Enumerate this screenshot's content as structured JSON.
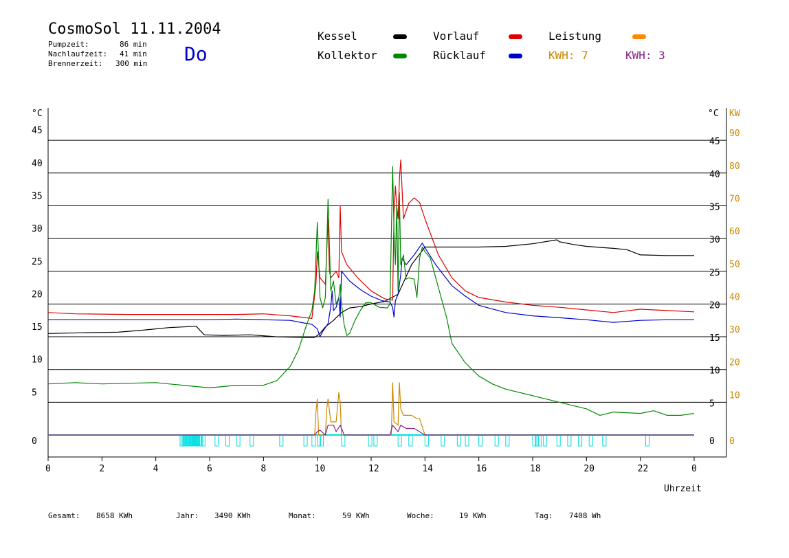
{
  "header": {
    "title": "CosmoSol 11.11.2004",
    "day": "Do",
    "stats": [
      {
        "label": "Pumpzeit:",
        "value": "86 min"
      },
      {
        "label": "Nachlaufzeit:",
        "value": "41 min"
      },
      {
        "label": "Brennerzeit:",
        "value": "300 min"
      }
    ]
  },
  "legend": {
    "kessel": {
      "label": "Kessel",
      "color": "#000000"
    },
    "vorlauf": {
      "label": "Vorlauf",
      "color": "#dd0000"
    },
    "leistung": {
      "label": "Leistung",
      "color": "#ff8800"
    },
    "kollektor": {
      "label": "Kollektor",
      "color": "#008800"
    },
    "ruecklauf": {
      "label": "Rücklauf",
      "color": "#0000cc"
    },
    "kwh1": {
      "label": "KWH: 7",
      "color": "#cc8800"
    },
    "kwh2": {
      "label": "KWH: 3",
      "color": "#882288"
    }
  },
  "footer": {
    "gesamt_label": "Gesamt:",
    "gesamt": "8658 KWh",
    "jahr_label": "Jahr:",
    "jahr": "3490 KWh",
    "monat_label": "Monat:",
    "monat": "59 KWh",
    "woche_label": "Woche:",
    "woche": "19 KWh",
    "tag_label": "Tag:",
    "tag": "7408 Wh"
  },
  "chart_data": {
    "type": "line",
    "xlabel": "Uhrzeit",
    "ylabel_left": "°C",
    "ylabel_right_temp": "°C",
    "ylabel_right_power": "KW",
    "xlim": [
      0,
      24
    ],
    "ylim": [
      0,
      50
    ],
    "y2lim": [
      0,
      100
    ],
    "x_ticks": [
      "0",
      "2",
      "4",
      "6",
      "8",
      "10",
      "12",
      "14",
      "16",
      "18",
      "20",
      "22",
      "0"
    ],
    "y_ticks": [
      0,
      5,
      10,
      15,
      20,
      25,
      30,
      35,
      40,
      45
    ],
    "y2_ticks": [
      0,
      10,
      20,
      30,
      40,
      50,
      60,
      70,
      80,
      90
    ],
    "grid": "horizontal",
    "series": [
      {
        "name": "Kessel",
        "color": "#000000",
        "x": [
          0,
          1.2,
          2.6,
          3.5,
          4.5,
          5.5,
          5.8,
          6.5,
          7.5,
          8.5,
          9.5,
          9.9,
          10.1,
          10.3,
          10.6,
          10.9,
          11.2,
          11.6,
          12.0,
          12.5,
          13.0,
          13.5,
          14.0,
          15,
          16,
          17,
          18,
          18.9,
          19.0,
          19.5,
          20,
          21,
          21.5,
          22,
          23,
          24
        ],
        "y": [
          15.5,
          15.6,
          15.7,
          16.0,
          16.4,
          16.6,
          15.3,
          15.2,
          15.3,
          15.0,
          14.9,
          14.9,
          15.5,
          16.5,
          17.5,
          18.7,
          19.4,
          19.6,
          20.0,
          20.4,
          21.5,
          26.0,
          28.7,
          28.7,
          28.7,
          28.8,
          29.2,
          29.8,
          29.5,
          29.1,
          28.8,
          28.5,
          28.3,
          27.5,
          27.4,
          27.4
        ]
      },
      {
        "name": "Vorlauf",
        "color": "#dd0000",
        "x": [
          0,
          1,
          3,
          5,
          7,
          8,
          9,
          9.8,
          9.95,
          10.0,
          10.1,
          10.3,
          10.4,
          10.45,
          10.5,
          10.7,
          10.8,
          10.85,
          10.9,
          11.1,
          11.5,
          12,
          12.5,
          12.8,
          12.85,
          12.9,
          12.95,
          13.0,
          13.05,
          13.1,
          13.2,
          13.4,
          13.6,
          13.8,
          14.0,
          14.5,
          15,
          15.5,
          16,
          17,
          18,
          19,
          20,
          21,
          22,
          23,
          24
        ],
        "y": [
          18.7,
          18.5,
          18.4,
          18.4,
          18.4,
          18.5,
          18.2,
          17.8,
          23,
          28,
          24,
          23,
          33,
          25,
          24,
          25,
          24,
          35,
          28,
          26,
          24,
          22,
          20.8,
          20.6,
          34,
          38,
          35,
          33,
          39,
          42,
          33,
          35.4,
          36.2,
          35.5,
          33,
          27.5,
          24,
          22,
          21,
          20.3,
          19.8,
          19.5,
          19.1,
          18.7,
          19.2,
          19.0,
          18.8
        ]
      },
      {
        "name": "Rücklauf",
        "color": "#0000cc",
        "x": [
          0,
          2,
          4,
          6,
          7,
          8,
          9,
          9.5,
          9.8,
          10.0,
          10.1,
          10.2,
          10.4,
          10.5,
          10.55,
          10.6,
          10.7,
          10.8,
          10.85,
          10.9,
          11.2,
          11.6,
          12,
          12.4,
          12.7,
          12.8,
          12.85,
          12.9,
          13.0,
          13.1,
          13.15,
          13.3,
          13.6,
          13.9,
          14.0,
          14.4,
          15,
          15.5,
          16,
          17,
          18,
          19,
          20,
          21,
          22,
          23,
          24
        ],
        "y": [
          17.6,
          17.6,
          17.6,
          17.6,
          17.7,
          17.6,
          17.5,
          17.1,
          16.9,
          16.2,
          15.0,
          15.8,
          17.0,
          19.6,
          22,
          19,
          19.5,
          21,
          18,
          25,
          23.5,
          22.2,
          21.2,
          20.5,
          20.3,
          19.5,
          18,
          20.5,
          21.5,
          24.5,
          27,
          26,
          27.5,
          29.3,
          28.6,
          26,
          22.8,
          21.2,
          19.8,
          18.7,
          18.2,
          17.9,
          17.6,
          17.2,
          17.5,
          17.6,
          17.6
        ]
      },
      {
        "name": "Kollektor",
        "color": "#008800",
        "x": [
          0,
          1,
          2,
          3,
          4,
          5,
          5.5,
          6,
          7,
          8,
          8.5,
          9,
          9.3,
          9.6,
          9.8,
          9.9,
          10.0,
          10.1,
          10.2,
          10.3,
          10.4,
          10.5,
          10.6,
          10.7,
          10.8,
          10.85,
          10.9,
          11.0,
          11.1,
          11.2,
          11.4,
          11.6,
          11.8,
          12.0,
          12.3,
          12.6,
          12.7,
          12.8,
          12.85,
          12.9,
          12.95,
          13.0,
          13.05,
          13.1,
          13.2,
          13.3,
          13.4,
          13.6,
          13.7,
          13.8,
          13.9,
          14.0,
          14.2,
          14.5,
          14.8,
          15.0,
          15.5,
          16,
          16.5,
          17,
          18,
          19,
          20,
          20.5,
          21,
          22,
          22.5,
          23,
          23.5,
          24
        ],
        "y": [
          7.8,
          8.0,
          7.8,
          7.9,
          8.0,
          7.6,
          7.4,
          7.2,
          7.6,
          7.6,
          8.3,
          10.5,
          13,
          16.8,
          19,
          22,
          32.5,
          21,
          19.4,
          21,
          36,
          22,
          23.5,
          20,
          21,
          23,
          20,
          16.8,
          15.2,
          15.5,
          17.5,
          19,
          20.2,
          20.2,
          19.5,
          19.4,
          20,
          41,
          31,
          26,
          35,
          22,
          37,
          26,
          27.5,
          23.8,
          24,
          23.8,
          21,
          27,
          28.7,
          28,
          27,
          22.5,
          18,
          14,
          11,
          9,
          7.8,
          7.0,
          6.0,
          5.0,
          4.0,
          3.0,
          3.5,
          3.3,
          3.7,
          3.0,
          3.0,
          3.3
        ]
      },
      {
        "name": "Leistung",
        "color": "#cc8800",
        "axis": "right",
        "x": [
          0,
          9.9,
          9.95,
          10.0,
          10.05,
          10.3,
          10.35,
          10.4,
          10.5,
          10.7,
          10.8,
          10.85,
          10.9,
          12.7,
          12.75,
          12.8,
          12.85,
          13.0,
          13.05,
          13.1,
          13.2,
          13.5,
          13.7,
          13.8,
          14.0,
          24
        ],
        "y": [
          0,
          0,
          7,
          11,
          0,
          0,
          8,
          11,
          4,
          4,
          13,
          10,
          0,
          0,
          0,
          16,
          4,
          3,
          16,
          8,
          6,
          6,
          5,
          5,
          0,
          0
        ]
      },
      {
        "name": "KWH",
        "color": "#882288",
        "axis": "right",
        "x": [
          0,
          9.9,
          10.0,
          10.1,
          10.3,
          10.4,
          10.6,
          10.7,
          10.85,
          11.0,
          12.7,
          12.8,
          12.9,
          13.0,
          13.1,
          13.3,
          13.6,
          14.0,
          24
        ],
        "y": [
          0,
          0,
          1,
          1.5,
          0,
          3,
          3,
          1,
          3,
          0,
          0,
          3,
          2,
          1,
          3,
          2,
          2,
          0,
          0
        ]
      }
    ],
    "burner_marks": [
      4.9,
      4.95,
      5.0,
      5.05,
      5.1,
      5.15,
      5.2,
      5.25,
      5.3,
      5.35,
      5.4,
      5.45,
      5.5,
      5.55,
      5.6,
      5.7,
      6.2,
      6.6,
      7.0,
      7.5,
      8.6,
      9.5,
      9.8,
      10.0,
      10.1,
      10.9,
      11.9,
      12.1,
      13.0,
      13.4,
      14.0,
      14.6,
      15.2,
      15.5,
      16.0,
      16.6,
      17.0,
      18.0,
      18.1,
      18.2,
      18.4,
      18.9,
      19.3,
      19.7,
      20.1,
      20.6,
      22.2
    ]
  }
}
